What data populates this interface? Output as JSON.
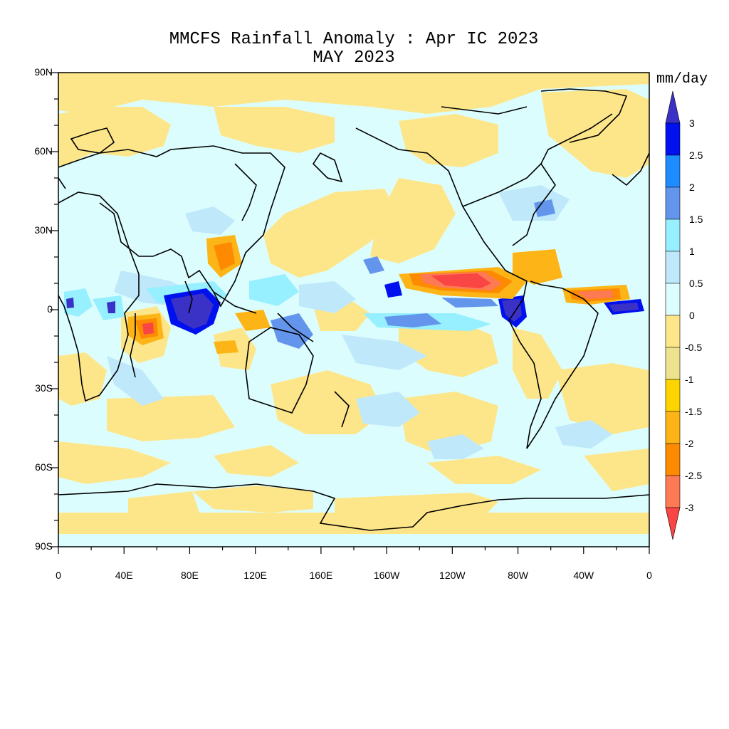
{
  "title": "MMCFS Rainfall Anomaly : Apr IC 2023",
  "subtitle": "MAY 2023",
  "colorbar": {
    "units": "mm/day",
    "levels": [
      "3",
      "2.5",
      "2",
      "1.5",
      "1",
      "0.5",
      "0",
      "-0.5",
      "-1",
      "-1.5",
      "-2",
      "-2.5",
      "-3"
    ],
    "colors": [
      "#3a32c6",
      "#0010ee",
      "#1e8cff",
      "#6495ed",
      "#96f0ff",
      "#bfe8fb",
      "#dcfdfe",
      "#fde68a",
      "#ede38e",
      "#fdd300",
      "#fdb416",
      "#fd8a00",
      "#fd7a55",
      "#f94543"
    ]
  },
  "axes": {
    "y_ticks": [
      "90N",
      "60N",
      "30N",
      "0",
      "30S",
      "60S",
      "90S"
    ],
    "x_ticks": [
      "0",
      "40E",
      "80E",
      "120E",
      "160E",
      "160W",
      "120W",
      "80W",
      "40W",
      "0"
    ]
  }
}
